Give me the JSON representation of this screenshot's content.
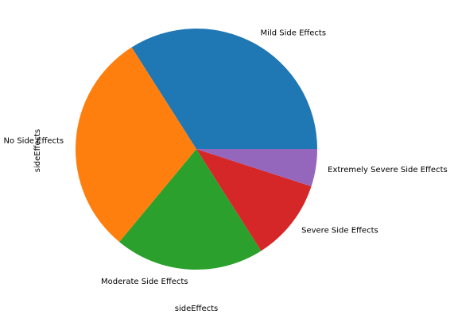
{
  "chart_data": {
    "type": "pie",
    "series_name": "sideEffects",
    "xlabel": "sideEffects",
    "categories": [
      "Mild Side Effects",
      "No Side Effects",
      "Moderate Side Effects",
      "Severe Side Effects",
      "Extremely Severe Side Effects"
    ],
    "values": [
      34,
      30,
      20,
      11,
      5
    ],
    "colors": [
      "#1f77b4",
      "#ff7f0e",
      "#2ca02c",
      "#d62728",
      "#9467bd"
    ],
    "start_angle": 0,
    "direction": "counterclockwise"
  }
}
